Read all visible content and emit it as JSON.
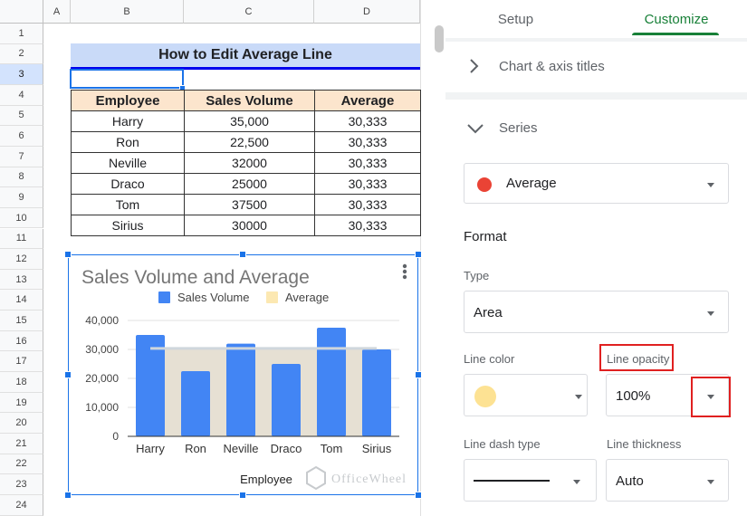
{
  "sheet": {
    "columns": [
      "A",
      "B",
      "C",
      "D"
    ],
    "rows": [
      "1",
      "2",
      "3",
      "4",
      "5",
      "6",
      "7",
      "8",
      "9",
      "10",
      "11",
      "12",
      "13",
      "14",
      "15",
      "16",
      "17",
      "18",
      "19",
      "20",
      "21",
      "22",
      "23",
      "24"
    ],
    "title": "How to Edit Average Line",
    "table": {
      "headers": [
        "Employee",
        "Sales Volume",
        "Average"
      ],
      "rows": [
        [
          "Harry",
          "35,000",
          "30,333"
        ],
        [
          "Ron",
          "22,500",
          "30,333"
        ],
        [
          "Neville",
          "32000",
          "30,333"
        ],
        [
          "Draco",
          "25000",
          "30,333"
        ],
        [
          "Tom",
          "37500",
          "30,333"
        ],
        [
          "Sirius",
          "30000",
          "30,333"
        ]
      ]
    }
  },
  "chart_data": {
    "type": "bar",
    "title": "Sales Volume and Average",
    "xlabel": "Employee",
    "ylabel": "",
    "categories": [
      "Harry",
      "Ron",
      "Neville",
      "Draco",
      "Tom",
      "Sirius"
    ],
    "series": [
      {
        "name": "Sales Volume",
        "values": [
          35000,
          22500,
          32000,
          25000,
          37500,
          30000
        ],
        "color": "#4285f4"
      },
      {
        "name": "Average",
        "values": [
          30333,
          30333,
          30333,
          30333,
          30333,
          30333
        ],
        "color": "#fce8b2",
        "render": "area"
      }
    ],
    "ylim": [
      0,
      40000
    ],
    "yticks": [
      "0",
      "10,000",
      "20,000",
      "30,000",
      "40,000"
    ],
    "legend": "top",
    "grid": true
  },
  "watermark": "OfficeWheel",
  "panel": {
    "tabs": [
      "Setup",
      "Customize"
    ],
    "active_tab": "Customize",
    "sections": {
      "chart_axis_titles": "Chart & axis titles",
      "series": "Series"
    },
    "series_select": {
      "value": "Average",
      "dot_color": "#ea4335"
    },
    "format_heading": "Format",
    "type_label": "Type",
    "type_value": "Area",
    "line_color_label": "Line color",
    "line_color_value": "#fde293",
    "line_opacity_label": "Line opacity",
    "line_opacity_value": "100%",
    "line_dash_label": "Line dash type",
    "line_thickness_label": "Line thickness",
    "line_thickness_value": "Auto",
    "accent_color": "#188038"
  }
}
